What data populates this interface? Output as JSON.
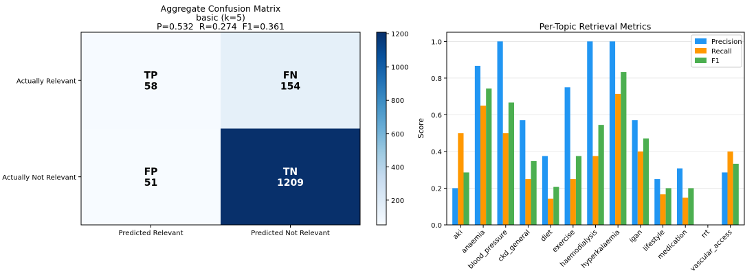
{
  "chart_data": [
    {
      "type": "heatmap",
      "title_lines": [
        "Aggregate Confusion Matrix",
        "basic (k=5)",
        "P=0.532  R=0.274  F1=0.361"
      ],
      "row_labels": [
        "Actually Relevant",
        "Actually Not Relevant"
      ],
      "col_labels": [
        "Predicted Relevant",
        "Predicted Not Relevant"
      ],
      "cells": [
        [
          {
            "tag": "TP",
            "value": 58
          },
          {
            "tag": "FN",
            "value": 154
          }
        ],
        [
          {
            "tag": "FP",
            "value": 51
          },
          {
            "tag": "TN",
            "value": 1209
          }
        ]
      ],
      "colorbar": {
        "min": 51,
        "max": 1209,
        "ticks": [
          200,
          400,
          600,
          800,
          1000,
          1200
        ],
        "colormap": "Blues"
      }
    },
    {
      "type": "bar",
      "title": "Per-Topic Retrieval Metrics",
      "ylabel": "Score",
      "ylim": [
        0,
        1.05
      ],
      "yticks": [
        0.0,
        0.2,
        0.4,
        0.6,
        0.8,
        1.0
      ],
      "grid": "horizontal",
      "legend_position": "top-right",
      "categories": [
        "aki",
        "anaemia",
        "blood_pressure",
        "ckd_general",
        "diet",
        "exercise",
        "haemodialysis",
        "hyperkalaemia",
        "igan",
        "lifestyle",
        "medication",
        "rrt",
        "vascular_access"
      ],
      "series": [
        {
          "name": "Precision",
          "color": "#2196F3",
          "values": [
            0.2,
            0.867,
            1.0,
            0.571,
            0.375,
            0.75,
            1.0,
            1.0,
            0.571,
            0.25,
            0.308,
            0.0,
            0.286
          ]
        },
        {
          "name": "Recall",
          "color": "#FF9800",
          "values": [
            0.5,
            0.65,
            0.5,
            0.25,
            0.143,
            0.25,
            0.375,
            0.714,
            0.4,
            0.167,
            0.148,
            0.0,
            0.4
          ]
        },
        {
          "name": "F1",
          "color": "#4CAF50",
          "values": [
            0.286,
            0.743,
            0.667,
            0.348,
            0.207,
            0.375,
            0.545,
            0.833,
            0.471,
            0.2,
            0.2,
            0.0,
            0.333
          ]
        }
      ]
    }
  ]
}
